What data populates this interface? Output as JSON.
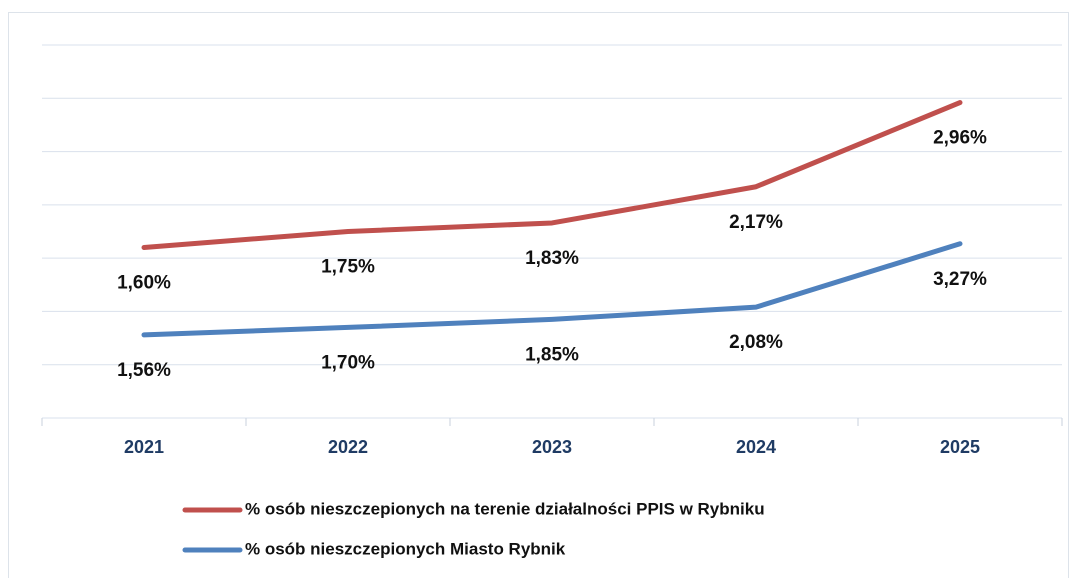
{
  "chart_data": {
    "type": "line",
    "categories": [
      "2021",
      "2022",
      "2023",
      "2024",
      "2025"
    ],
    "series": [
      {
        "name": "% osób nieszczepionych na terenie działalności PPIS w Rybniku",
        "color": "#c0504d",
        "values": [
          1.6,
          1.75,
          1.83,
          2.17,
          2.96
        ],
        "value_labels": [
          "1,60%",
          "1,75%",
          "1,83%",
          "2,17%",
          "2,96%"
        ]
      },
      {
        "name": "% osób nieszczepionych Miasto Rybnik",
        "color": "#4f81bd",
        "axis": "y2",
        "values": [
          1.56,
          1.7,
          1.85,
          2.08,
          3.27
        ],
        "value_labels": [
          "1,56%",
          "1,70%",
          "1,85%",
          "2,08%",
          "3,27%"
        ]
      }
    ],
    "ylim": [
      0,
      3.5
    ],
    "yticks": [
      0,
      0.5,
      1,
      1.5,
      2,
      2.5,
      3,
      3.5
    ],
    "y2lim": [
      0,
      7
    ],
    "grid": true
  }
}
